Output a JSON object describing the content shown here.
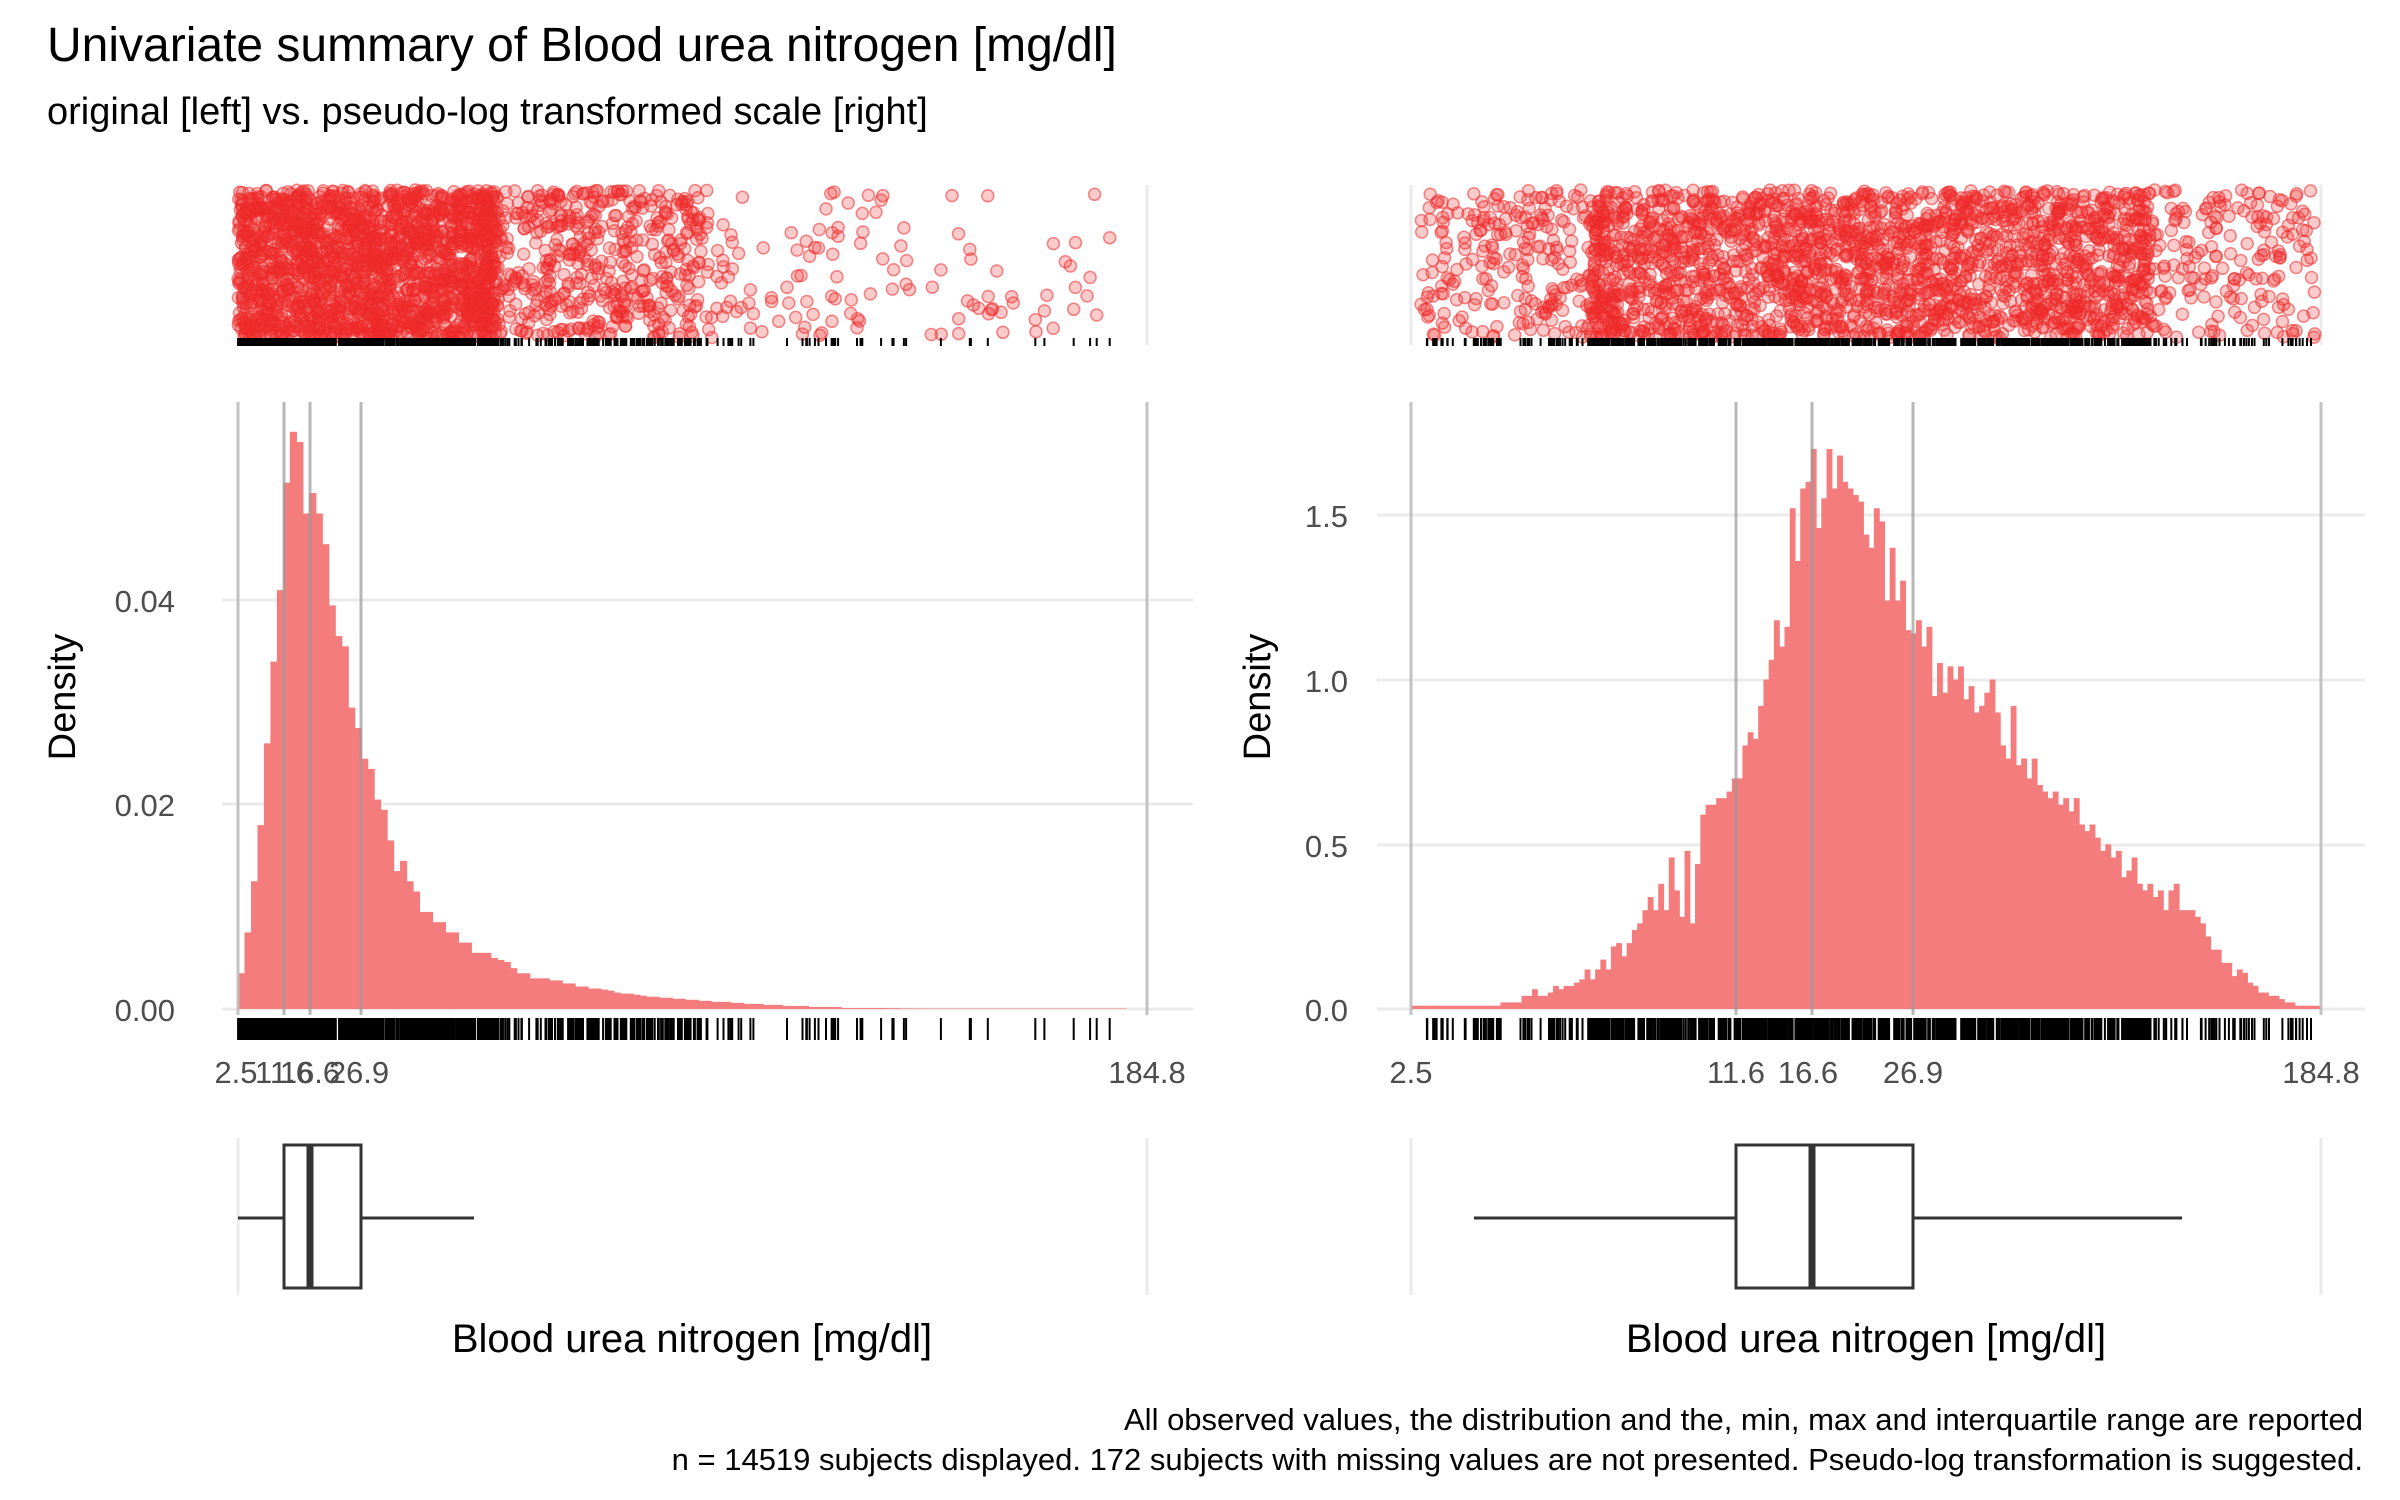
{
  "header": {
    "title": "Univariate summary of Blood urea nitrogen [mg/dl]",
    "subtitle": "original [left] vs. pseudo-log transformed scale [right]"
  },
  "caption": {
    "line1": "All observed values, the distribution and the, min, max and interquartile range are reported",
    "line2": "n = 14519 subjects displayed. 172 subjects with missing values are not presented. Pseudo-log transformation is suggested."
  },
  "colors": {
    "histogram_fill": "#f47c7c",
    "jitter_points": "#ee2a2a",
    "reference_lines": "#bdbdbd",
    "grid": "#ebebeb",
    "box_outline": "#333333"
  },
  "summary_stats": {
    "min": 2.5,
    "q1": 11.6,
    "median": 16.6,
    "q3": 26.9,
    "max": 184.8,
    "whisker_low": 2.5,
    "whisker_high": 51.5,
    "whisker_low_log": 3.9,
    "whisker_high_log": 135
  },
  "chart_data": [
    {
      "type": "bar",
      "panel": "original scale",
      "xlabel": "Blood urea nitrogen [mg/dl]",
      "ylabel": "Density",
      "x_ticks": [
        "2.5",
        "11.6",
        "16.6",
        "26.9",
        "184.8"
      ],
      "y_ticks": [
        "0.00",
        "0.02",
        "0.04"
      ],
      "ylim": [
        0,
        0.06
      ],
      "xlim": [
        2.5,
        184.8
      ],
      "bins": {
        "start": 2.5,
        "width": 1.3,
        "density": [
          0.0035,
          0.0075,
          0.0125,
          0.018,
          0.026,
          0.034,
          0.041,
          0.0515,
          0.0565,
          0.0555,
          0.0485,
          0.0505,
          0.0485,
          0.0455,
          0.0395,
          0.0365,
          0.0355,
          0.0295,
          0.0275,
          0.0245,
          0.0235,
          0.0205,
          0.0195,
          0.0165,
          0.0135,
          0.0145,
          0.0125,
          0.0115,
          0.0095,
          0.0095,
          0.0085,
          0.0085,
          0.0075,
          0.0075,
          0.0065,
          0.0065,
          0.0055,
          0.0055,
          0.0055,
          0.005,
          0.0048,
          0.0046,
          0.004,
          0.0035,
          0.0035,
          0.003,
          0.003,
          0.003,
          0.0028,
          0.0028,
          0.0025,
          0.0025,
          0.0022,
          0.0022,
          0.002,
          0.002,
          0.0019,
          0.0018,
          0.0016,
          0.0015,
          0.0015,
          0.0014,
          0.0013,
          0.0012,
          0.0012,
          0.0011,
          0.0011,
          0.001,
          0.001,
          0.0009,
          0.0009,
          0.0008,
          0.0008,
          0.0007,
          0.0007,
          0.0007,
          0.0006,
          0.0006,
          0.0005,
          0.0005,
          0.0005,
          0.0004,
          0.0004,
          0.0004,
          0.0003,
          0.0003,
          0.0003,
          0.0003,
          0.0002,
          0.0002,
          0.0002,
          0.0002,
          0.0002,
          0.0001,
          0.0001,
          0.0001,
          0.0001,
          0.0001,
          0.0001,
          0.0001,
          8e-05,
          8e-05,
          6e-05,
          6e-05,
          5e-05,
          5e-05,
          4e-05,
          4e-05,
          3e-05,
          3e-05,
          3e-05,
          2e-05,
          2e-05,
          2e-05,
          2e-05,
          1e-05,
          1e-05,
          1e-05,
          1e-05,
          1e-05,
          1e-05,
          1e-05,
          0,
          0,
          0,
          0,
          0,
          0,
          0,
          0,
          0,
          0,
          0,
          0,
          0,
          0,
          1e-05
        ]
      }
    },
    {
      "type": "bar",
      "panel": "pseudo-log transformed scale",
      "xlabel": "Blood urea nitrogen [mg/dl]",
      "ylabel": "Density",
      "x_ticks": [
        "2.5",
        "11.6",
        "16.6",
        "26.9",
        "184.8"
      ],
      "y_ticks": [
        "0.0",
        "0.5",
        "1.0",
        "1.5"
      ],
      "ylim": [
        0,
        1.8
      ],
      "xlim": [
        2.5,
        184.8
      ],
      "bins": {
        "scale": "pseudo-log (asinh)",
        "density": [
          0.01,
          0.01,
          0.01,
          0.01,
          0.01,
          0.01,
          0.01,
          0.01,
          0.01,
          0.01,
          0.01,
          0.01,
          0.01,
          0.01,
          0.01,
          0.01,
          0.01,
          0.02,
          0.02,
          0.02,
          0.02,
          0.04,
          0.04,
          0.06,
          0.04,
          0.04,
          0.05,
          0.07,
          0.06,
          0.07,
          0.07,
          0.08,
          0.09,
          0.12,
          0.09,
          0.12,
          0.15,
          0.12,
          0.19,
          0.2,
          0.16,
          0.2,
          0.24,
          0.26,
          0.3,
          0.34,
          0.3,
          0.38,
          0.3,
          0.46,
          0.36,
          0.28,
          0.48,
          0.26,
          0.44,
          0.59,
          0.62,
          0.62,
          0.64,
          0.64,
          0.66,
          0.7,
          0.7,
          0.8,
          0.84,
          0.82,
          0.92,
          1.0,
          1.06,
          1.18,
          1.1,
          1.16,
          1.52,
          1.36,
          1.58,
          1.6,
          1.7,
          1.46,
          1.55,
          1.7,
          1.58,
          1.68,
          1.6,
          1.58,
          1.56,
          1.54,
          1.44,
          1.4,
          1.52,
          1.48,
          1.24,
          1.4,
          1.24,
          1.3,
          1.15,
          1.14,
          1.18,
          1.1,
          1.16,
          0.95,
          1.05,
          0.96,
          1.04,
          1.0,
          1.04,
          0.94,
          0.98,
          0.9,
          0.92,
          0.96,
          1.0,
          0.9,
          0.8,
          0.76,
          0.92,
          0.74,
          0.76,
          0.7,
          0.76,
          0.68,
          0.66,
          0.64,
          0.66,
          0.62,
          0.64,
          0.6,
          0.64,
          0.56,
          0.54,
          0.56,
          0.52,
          0.48,
          0.5,
          0.46,
          0.48,
          0.4,
          0.42,
          0.46,
          0.38,
          0.36,
          0.38,
          0.34,
          0.36,
          0.3,
          0.36,
          0.38,
          0.3,
          0.3,
          0.3,
          0.28,
          0.26,
          0.22,
          0.18,
          0.18,
          0.14,
          0.14,
          0.1,
          0.12,
          0.11,
          0.08,
          0.07,
          0.05,
          0.05,
          0.04,
          0.04,
          0.03,
          0.02,
          0.02,
          0.01,
          0.01,
          0.01,
          0.01,
          0.01
        ]
      }
    }
  ]
}
